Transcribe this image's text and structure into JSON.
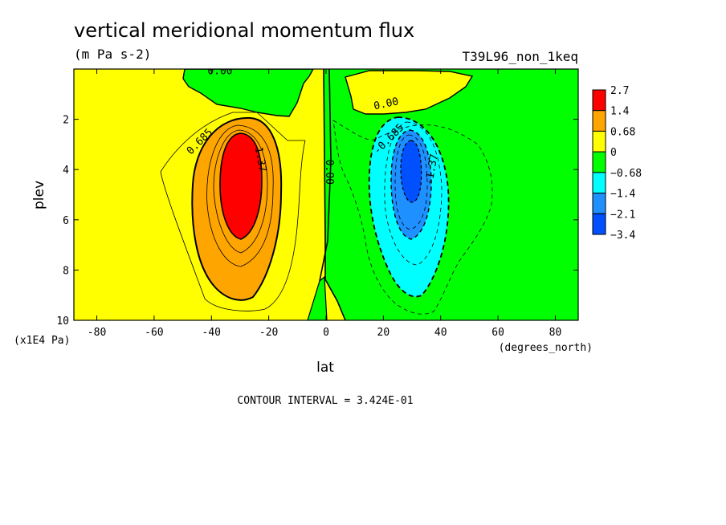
{
  "title": "vertical meridional momentum flux",
  "units": "(m Pa s-2)",
  "run_name": "T39L96_non_1keq",
  "contour_interval": "CONTOUR INTERVAL = 3.424E-01",
  "chart_data": {
    "type": "heatmap",
    "xlabel": "lat",
    "ylabel": "plev",
    "x_unit": "(degrees_north)",
    "y_unit": "(x1E4 Pa)",
    "xlim": [
      -88,
      88
    ],
    "ylim": [
      10,
      0
    ],
    "x_ticks": [
      -80,
      -60,
      -40,
      -20,
      0,
      20,
      40,
      60,
      80
    ],
    "x_tick_labels": [
      "-80",
      "-60",
      "-40",
      "-20",
      "0",
      "20",
      "40",
      "60",
      "80"
    ],
    "y_ticks": [
      2,
      4,
      6,
      8,
      10
    ],
    "y_tick_labels": [
      "2",
      "4",
      "6",
      "8",
      "10"
    ],
    "colorbar": {
      "labels": [
        "2.7",
        "1.4",
        "0.68",
        "0",
        "−0.68",
        "−1.4",
        "−2.1",
        "−3.4"
      ],
      "colors": [
        "#ff0000",
        "#ffa500",
        "#ffff00",
        "#00ff00",
        "#00ffff",
        "#1e90ff",
        "#0050ff"
      ]
    },
    "contour_labels": [
      {
        "text": "0.00",
        "lat": -37,
        "plev": 0.1,
        "rot": 0
      },
      {
        "text": "0.00",
        "lat": 21,
        "plev": 1.4,
        "rot": -12
      },
      {
        "text": "0.00",
        "lat": 1,
        "plev": 4.1,
        "rot": 90
      },
      {
        "text": "0.685",
        "lat": -44,
        "plev": 2.9,
        "rot": -45
      },
      {
        "text": "1.37",
        "lat": -23,
        "plev": 3.6,
        "rot": 80
      },
      {
        "text": "-0.685",
        "lat": 22,
        "plev": 2.8,
        "rot": -45
      },
      {
        "text": "-1.37",
        "lat": 37,
        "plev": 4.0,
        "rot": -80
      }
    ],
    "features": [
      {
        "name": "northward-flux-maximum",
        "lat": -31,
        "plev": 4.2,
        "peak": 2.7
      },
      {
        "name": "southward-flux-minimum",
        "lat": 30,
        "plev": 4.0,
        "peak": -3.4
      }
    ]
  }
}
